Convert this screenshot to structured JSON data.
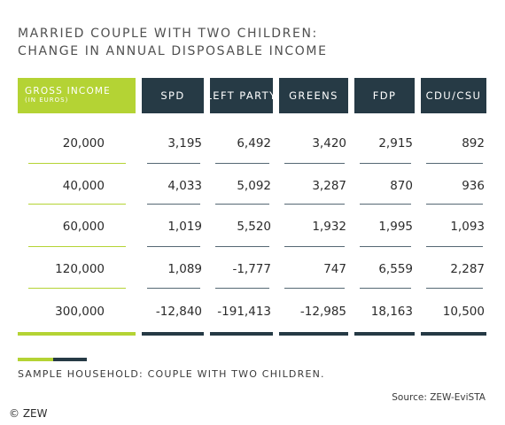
{
  "title_line1": "MARRIED COUPLE WITH TWO CHILDREN:",
  "title_line2": "CHANGE IN ANNUAL DISPOSABLE INCOME",
  "chart_data": {
    "type": "table",
    "row_header": "GROSS INCOME",
    "row_header_unit": "(IN EUROS)",
    "columns": [
      "SPD",
      "LEFT PARTY",
      "GREENS",
      "FDP",
      "CDU/CSU"
    ],
    "rows": [
      {
        "gross_income": "20,000",
        "values": [
          "3,195",
          "6,492",
          "3,420",
          "2,915",
          "892"
        ]
      },
      {
        "gross_income": "40,000",
        "values": [
          "4,033",
          "5,092",
          "3,287",
          "870",
          "936"
        ]
      },
      {
        "gross_income": "60,000",
        "values": [
          "1,019",
          "5,520",
          "1,932",
          "1,995",
          "1,093"
        ]
      },
      {
        "gross_income": "120,000",
        "values": [
          "1,089",
          "-1,777",
          "747",
          "6,559",
          "2,287"
        ]
      },
      {
        "gross_income": "300,000",
        "values": [
          "-12,840",
          "-191,413",
          "-12,985",
          "18,163",
          "10,500"
        ]
      }
    ]
  },
  "note": "SAMPLE HOUSEHOLD: COUPLE WITH TWO CHILDREN.",
  "source": "Source: ZEW-EviSTA",
  "copyright": "© ZEW",
  "colors": {
    "accent_green": "#b4d334",
    "dark_slate": "#263a45"
  }
}
